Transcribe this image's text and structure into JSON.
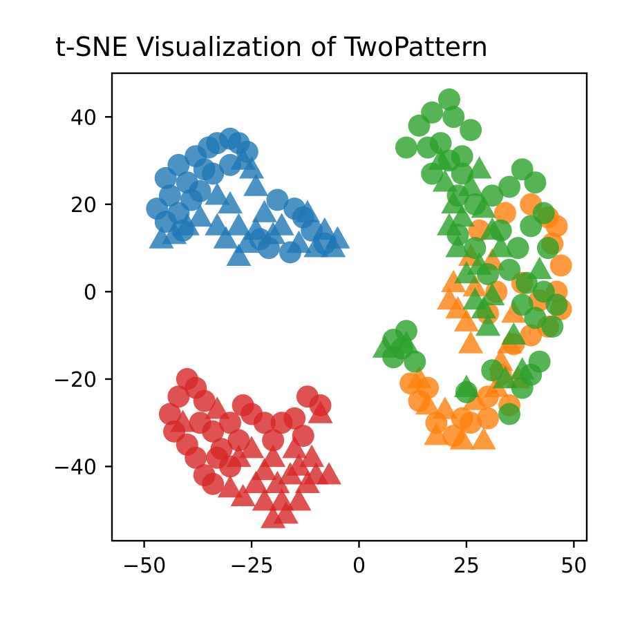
{
  "chart_data": {
    "type": "scatter",
    "title": "t-SNE Visualization of TwoPattern",
    "xlabel": "",
    "ylabel": "",
    "xlim": [
      -57.5,
      53
    ],
    "ylim": [
      -57,
      50
    ],
    "xticks": [
      -50,
      -25,
      0,
      25,
      50
    ],
    "yticks": [
      -40,
      -20,
      0,
      20,
      40
    ],
    "xtick_labels": [
      "−50",
      "−25",
      "0",
      "25",
      "50"
    ],
    "ytick_labels": [
      "−40",
      "−20",
      "0",
      "20",
      "40"
    ],
    "grid": false,
    "legend": null,
    "alpha": 0.8,
    "markers": [
      "circle",
      "triangle"
    ],
    "series": [
      {
        "color": "#1f77b4",
        "circles": [
          [
            -47,
            19
          ],
          [
            -44,
            22
          ],
          [
            -45,
            26
          ],
          [
            -42,
            29
          ],
          [
            -40,
            25
          ],
          [
            -38,
            31
          ],
          [
            -35,
            33
          ],
          [
            -33,
            34
          ],
          [
            -30,
            35
          ],
          [
            -28,
            34
          ],
          [
            -36,
            28
          ],
          [
            -42,
            18
          ],
          [
            -45,
            16
          ],
          [
            -39,
            21
          ],
          [
            -34,
            27
          ],
          [
            -30,
            29
          ],
          [
            -26,
            32
          ],
          [
            -19,
            21
          ],
          [
            -15,
            19
          ],
          [
            -13,
            17
          ],
          [
            -11,
            14
          ],
          [
            -8,
            11
          ],
          [
            -16,
            9
          ],
          [
            -21,
            10
          ],
          [
            -23,
            12
          ],
          [
            -37,
            23
          ],
          [
            -41,
            14
          ]
        ],
        "triangles": [
          [
            -46,
            12
          ],
          [
            -43,
            13
          ],
          [
            -40,
            15
          ],
          [
            -37,
            17
          ],
          [
            -33,
            22
          ],
          [
            -30,
            20
          ],
          [
            -31,
            12
          ],
          [
            -28,
            8
          ],
          [
            -26,
            11
          ],
          [
            -24,
            14
          ],
          [
            -22,
            18
          ],
          [
            -24,
            24
          ],
          [
            -25,
            28
          ],
          [
            -27,
            30
          ],
          [
            -20,
            13
          ],
          [
            -14,
            11
          ],
          [
            -10,
            10
          ],
          [
            -6,
            10
          ],
          [
            -5,
            12
          ],
          [
            -8,
            14
          ],
          [
            -12,
            18
          ],
          [
            -18,
            15
          ],
          [
            -28,
            15
          ],
          [
            -33,
            15
          ]
        ]
      },
      {
        "color": "#ff7f0e",
        "circles": [
          [
            44,
            17
          ],
          [
            46,
            15
          ],
          [
            45,
            11
          ],
          [
            47,
            6
          ],
          [
            46,
            0
          ],
          [
            47,
            -4
          ],
          [
            44,
            -8
          ],
          [
            40,
            -10
          ],
          [
            36,
            -12
          ],
          [
            33,
            -19
          ],
          [
            30,
            -24
          ],
          [
            26,
            -30
          ],
          [
            22,
            -33
          ],
          [
            18,
            -30
          ],
          [
            14,
            -25
          ],
          [
            12,
            -21
          ],
          [
            16,
            -22
          ],
          [
            24,
            -29
          ],
          [
            30,
            -29
          ],
          [
            35,
            -26
          ],
          [
            38,
            2
          ],
          [
            42,
            -2
          ],
          [
            32,
            0
          ],
          [
            28,
            14
          ],
          [
            34,
            18
          ],
          [
            40,
            20
          ],
          [
            30,
            -5
          ]
        ],
        "triangles": [
          [
            21,
            -2
          ],
          [
            23,
            -4
          ],
          [
            25,
            -7
          ],
          [
            27,
            1
          ],
          [
            22,
            2
          ],
          [
            33,
            -16
          ],
          [
            35,
            -12
          ],
          [
            37,
            -20
          ],
          [
            32,
            -22
          ],
          [
            27,
            -25
          ],
          [
            20,
            -27
          ],
          [
            16,
            -26
          ],
          [
            14,
            -20
          ],
          [
            29,
            -34
          ],
          [
            24,
            -34
          ],
          [
            18,
            -33
          ],
          [
            26,
            8
          ],
          [
            31,
            7
          ],
          [
            36,
            -5
          ],
          [
            26,
            -12
          ]
        ]
      },
      {
        "color": "#2ca02c",
        "circles": [
          [
            11,
            33
          ],
          [
            14,
            38
          ],
          [
            17,
            41
          ],
          [
            21,
            44
          ],
          [
            22,
            40
          ],
          [
            26,
            37
          ],
          [
            24,
            31
          ],
          [
            21,
            30
          ],
          [
            19,
            34
          ],
          [
            16,
            33
          ],
          [
            24,
            27
          ],
          [
            23,
            22
          ],
          [
            27,
            20
          ],
          [
            31,
            22
          ],
          [
            35,
            24
          ],
          [
            38,
            28
          ],
          [
            41,
            25
          ],
          [
            43,
            18
          ],
          [
            44,
            10
          ],
          [
            40,
            15
          ],
          [
            37,
            10
          ],
          [
            35,
            5
          ],
          [
            39,
            2
          ],
          [
            43,
            0
          ],
          [
            46,
            -3
          ],
          [
            45,
            -8
          ],
          [
            41,
            -6
          ],
          [
            38,
            -3
          ],
          [
            30,
            4
          ],
          [
            25,
            -23
          ],
          [
            31,
            -18
          ],
          [
            35,
            -28
          ],
          [
            38,
            -22
          ],
          [
            40,
            -19
          ],
          [
            42,
            -16
          ],
          [
            8,
            -11
          ],
          [
            10,
            -13
          ],
          [
            11,
            -9
          ],
          [
            8,
            -15
          ],
          [
            13,
            -16
          ],
          [
            23,
            13
          ],
          [
            27,
            10
          ],
          [
            33,
            14
          ],
          [
            17,
            27
          ]
        ],
        "triangles": [
          [
            20,
            25
          ],
          [
            22,
            20
          ],
          [
            21,
            15
          ],
          [
            24,
            17
          ],
          [
            26,
            24
          ],
          [
            29,
            19
          ],
          [
            31,
            14
          ],
          [
            33,
            10
          ],
          [
            28,
            6
          ],
          [
            25,
            4
          ],
          [
            27,
            -2
          ],
          [
            29,
            -4
          ],
          [
            31,
            -1
          ],
          [
            36,
            -10
          ],
          [
            30,
            -8
          ],
          [
            25,
            -22
          ],
          [
            38,
            -18
          ],
          [
            34,
            -20
          ],
          [
            6,
            -13
          ],
          [
            11,
            -12
          ],
          [
            23,
            10
          ],
          [
            19,
            30
          ],
          [
            28,
            28
          ],
          [
            42,
            5
          ]
        ]
      },
      {
        "color": "#d62728",
        "circles": [
          [
            -44,
            -28
          ],
          [
            -42,
            -24
          ],
          [
            -40,
            -20
          ],
          [
            -38,
            -22
          ],
          [
            -36,
            -25
          ],
          [
            -43,
            -32
          ],
          [
            -40,
            -35
          ],
          [
            -38,
            -38
          ],
          [
            -36,
            -42
          ],
          [
            -34,
            -44
          ],
          [
            -30,
            -40
          ],
          [
            -32,
            -36
          ],
          [
            -34,
            -32
          ],
          [
            -30,
            -30
          ],
          [
            -27,
            -26
          ],
          [
            -25,
            -28
          ],
          [
            -22,
            -30
          ],
          [
            -20,
            -34
          ],
          [
            -18,
            -30
          ],
          [
            -15,
            -29
          ],
          [
            -13,
            -33
          ],
          [
            -12,
            -24
          ],
          [
            -9,
            -26
          ],
          [
            -37,
            -30
          ],
          [
            -28,
            -34
          ],
          [
            -33,
            -38
          ]
        ],
        "triangles": [
          [
            -30,
            -45
          ],
          [
            -27,
            -47
          ],
          [
            -24,
            -44
          ],
          [
            -22,
            -41
          ],
          [
            -20,
            -38
          ],
          [
            -19,
            -44
          ],
          [
            -16,
            -42
          ],
          [
            -14,
            -40
          ],
          [
            -12,
            -44
          ],
          [
            -10,
            -42
          ],
          [
            -7,
            -42
          ],
          [
            -18,
            -48
          ],
          [
            -20,
            -52
          ],
          [
            -17,
            -51
          ],
          [
            -14,
            -48
          ],
          [
            -22,
            -48
          ],
          [
            -25,
            -36
          ],
          [
            -15,
            -36
          ],
          [
            -11,
            -38
          ],
          [
            -28,
            -38
          ],
          [
            -9,
            -28
          ],
          [
            -33,
            -27
          ],
          [
            -41,
            -30
          ]
        ]
      }
    ]
  }
}
